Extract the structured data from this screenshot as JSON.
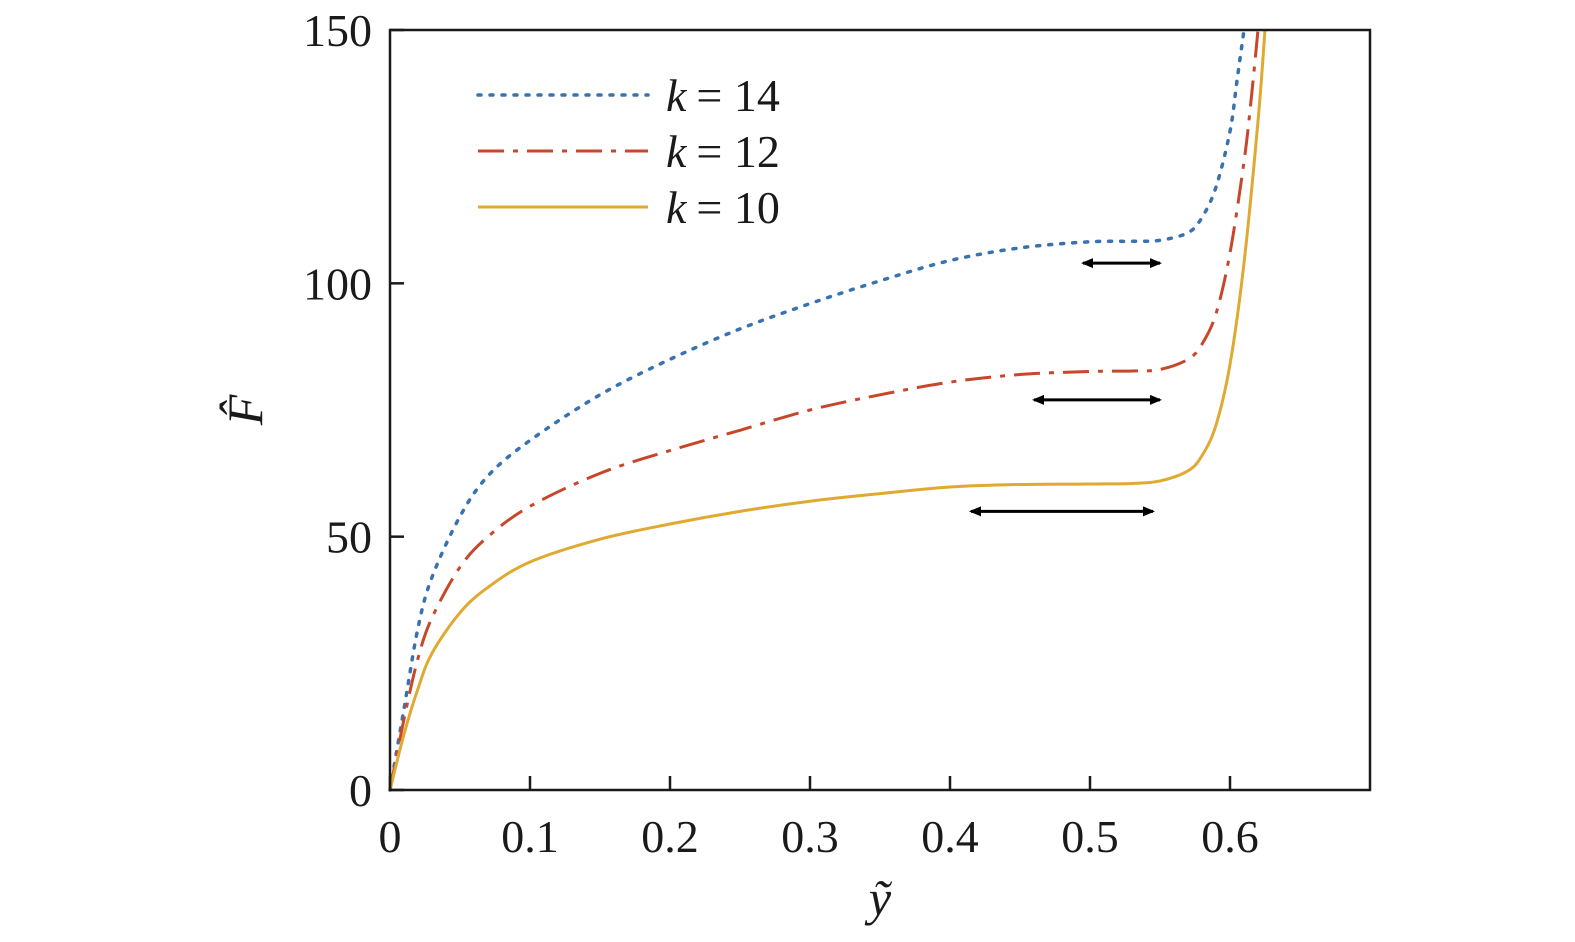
{
  "chart_data": {
    "type": "line",
    "xlabel": "ỹ",
    "ylabel": "F̂",
    "xlim": [
      0,
      0.7
    ],
    "ylim": [
      0,
      150
    ],
    "xticks": [
      0,
      0.1,
      0.2,
      0.3,
      0.4,
      0.5,
      0.6
    ],
    "xtick_labels": [
      "0",
      "0.1",
      "0.2",
      "0.3",
      "0.4",
      "0.5",
      "0.6"
    ],
    "yticks": [
      0,
      50,
      100,
      150
    ],
    "ytick_labels": [
      "0",
      "50",
      "100",
      "150"
    ],
    "grid": false,
    "legend_position": "top-left",
    "series": [
      {
        "name": "k = 14",
        "legend_var": "k",
        "legend_value": "= 14",
        "color": "#3a72b0",
        "style": "dotted",
        "x": [
          0,
          0.01,
          0.02,
          0.03,
          0.05,
          0.07,
          0.1,
          0.15,
          0.2,
          0.25,
          0.3,
          0.35,
          0.4,
          0.45,
          0.5,
          0.53,
          0.55,
          0.57,
          0.58,
          0.59,
          0.6,
          0.605,
          0.61
        ],
        "y": [
          0,
          16,
          32,
          42,
          54,
          62,
          69,
          78,
          85,
          91,
          96,
          100.5,
          104.5,
          107,
          108.2,
          108.3,
          108.5,
          110,
          113,
          119,
          130,
          140,
          150
        ]
      },
      {
        "name": "k = 12",
        "legend_var": "k",
        "legend_value": "= 12",
        "color": "#c8472a",
        "style": "dashdot",
        "x": [
          0,
          0.01,
          0.02,
          0.03,
          0.05,
          0.07,
          0.1,
          0.15,
          0.2,
          0.25,
          0.3,
          0.35,
          0.4,
          0.45,
          0.5,
          0.53,
          0.55,
          0.57,
          0.58,
          0.59,
          0.6,
          0.61,
          0.615,
          0.62
        ],
        "y": [
          0,
          14,
          26,
          34,
          44,
          50,
          56,
          62.5,
          67,
          71,
          75,
          78,
          80.5,
          82,
          82.6,
          82.7,
          83,
          85,
          88,
          94,
          106,
          124,
          136,
          150
        ]
      },
      {
        "name": "k = 10",
        "legend_var": "k",
        "legend_value": "= 10",
        "color": "#e0a932",
        "style": "solid",
        "x": [
          0,
          0.01,
          0.02,
          0.03,
          0.05,
          0.07,
          0.1,
          0.15,
          0.2,
          0.25,
          0.3,
          0.35,
          0.4,
          0.45,
          0.5,
          0.53,
          0.55,
          0.57,
          0.58,
          0.59,
          0.6,
          0.61,
          0.62,
          0.625
        ],
        "y": [
          0,
          11,
          20,
          27,
          35,
          40,
          45,
          49.5,
          52.5,
          55,
          57,
          58.5,
          59.8,
          60.3,
          60.4,
          60.5,
          61,
          63,
          66,
          72,
          84,
          104,
          132,
          150
        ]
      }
    ],
    "annotations": [
      {
        "type": "double-arrow",
        "x0": 0.495,
        "x1": 0.55,
        "y": 104
      },
      {
        "type": "double-arrow",
        "x0": 0.46,
        "x1": 0.55,
        "y": 77
      },
      {
        "type": "double-arrow",
        "x0": 0.415,
        "x1": 0.545,
        "y": 55
      }
    ]
  }
}
